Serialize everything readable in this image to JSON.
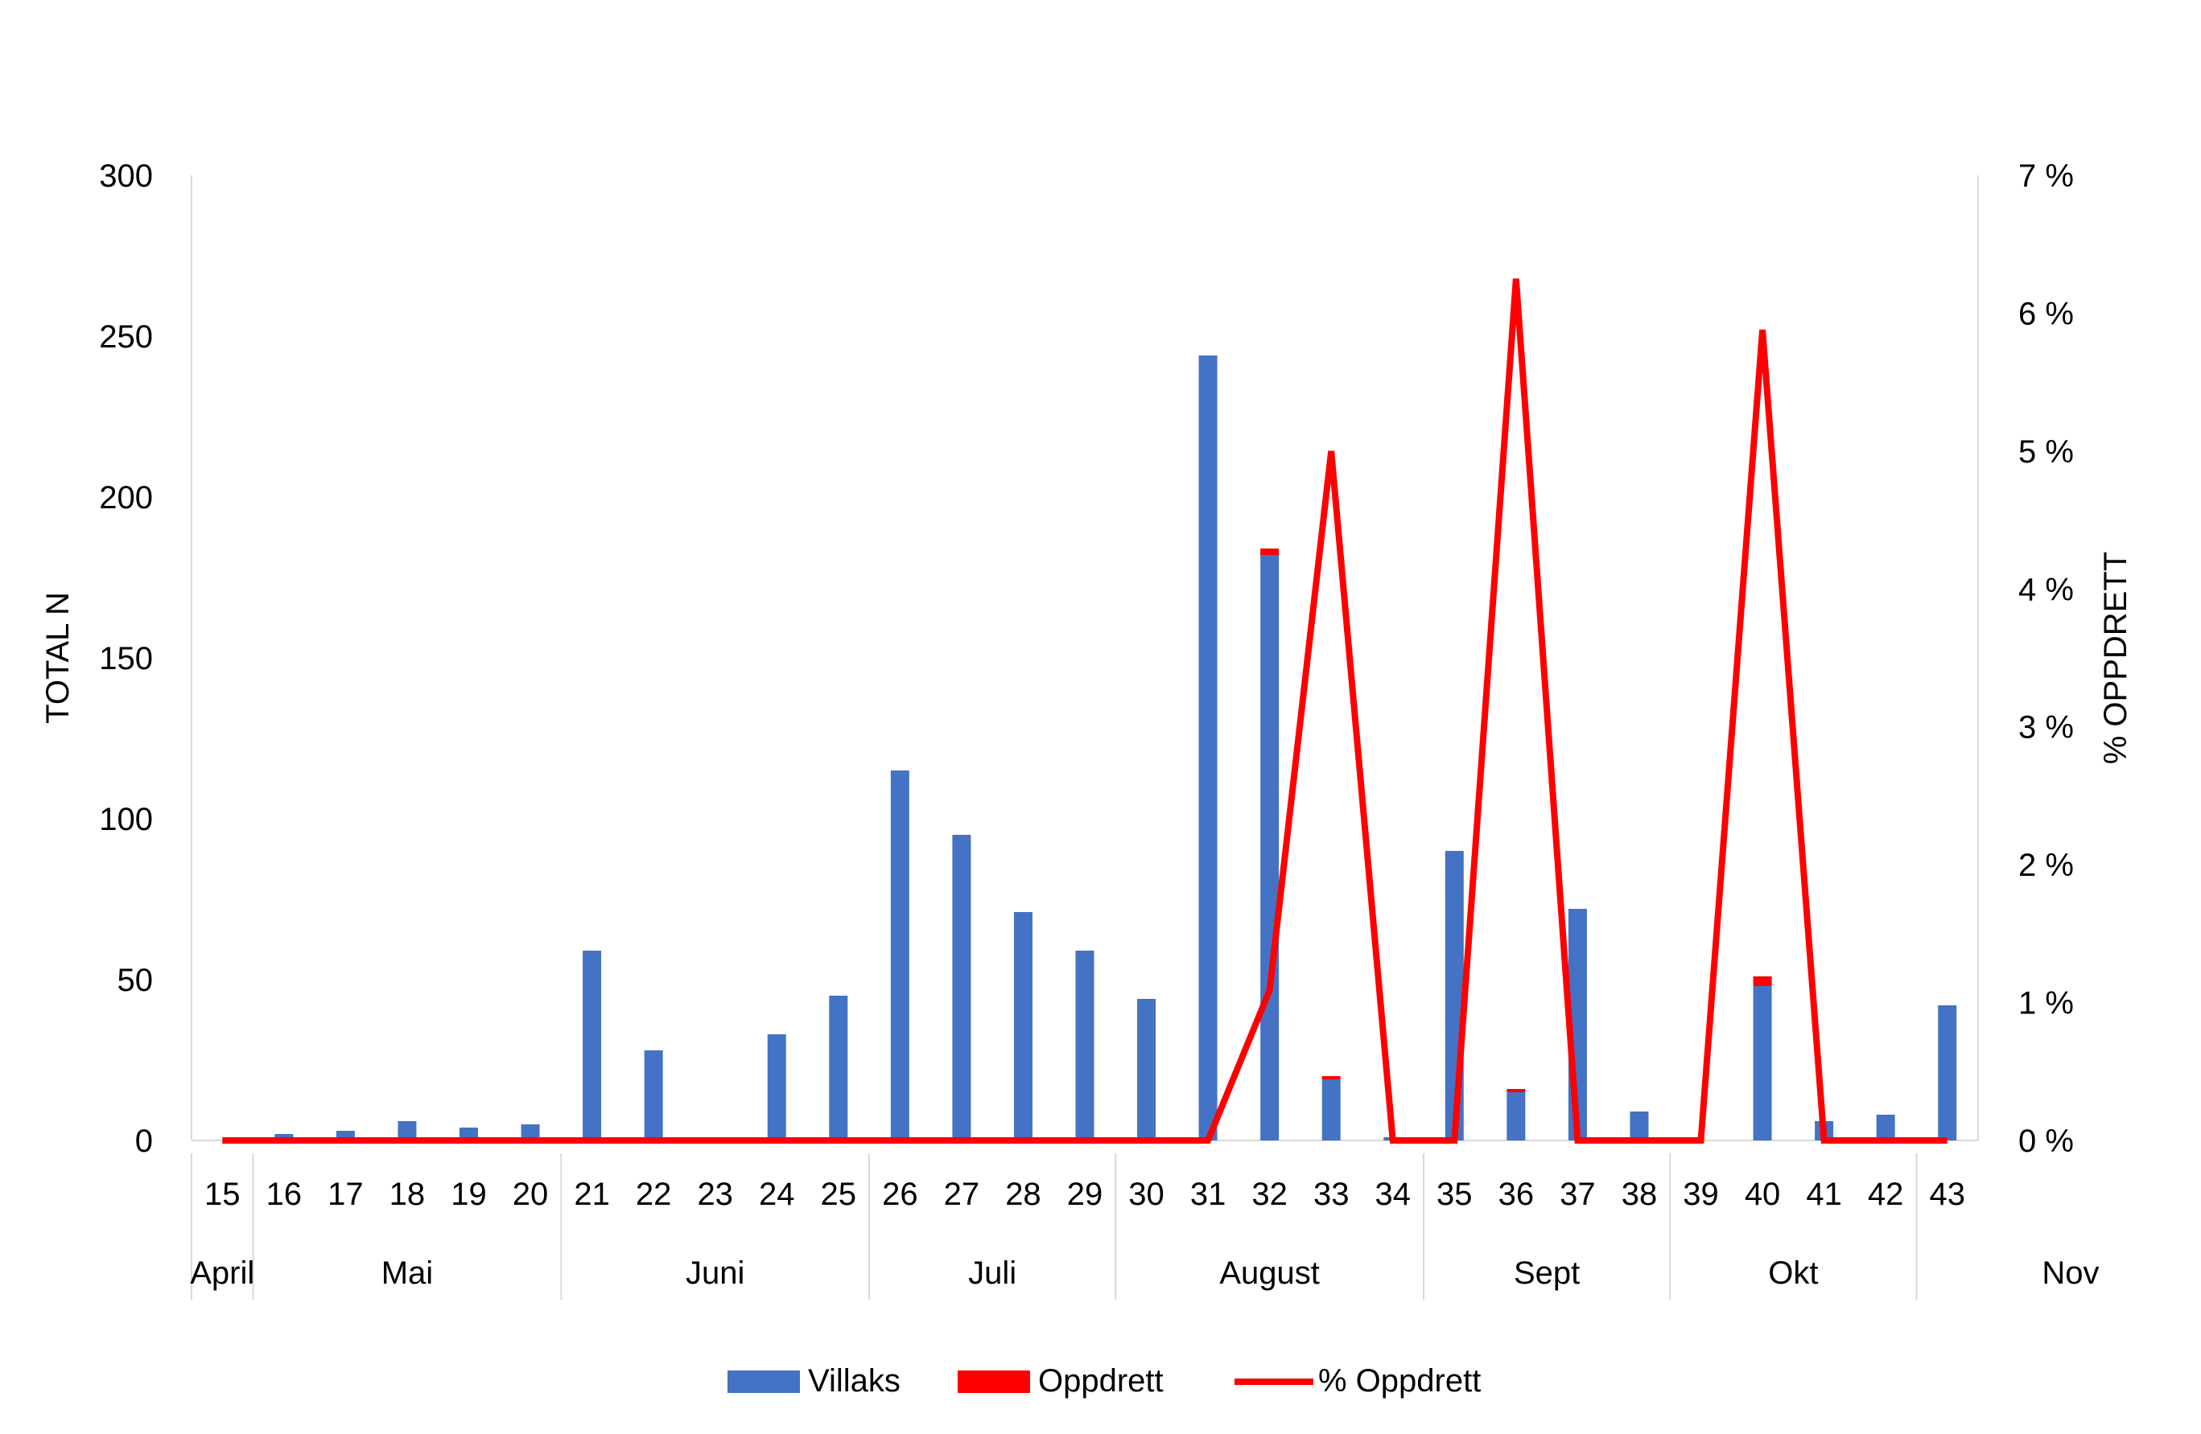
{
  "chart_data": {
    "type": "bar",
    "title": "",
    "ylabel": "TOTAL N",
    "y2label": "% OPPDRETT",
    "ylim": [
      0,
      300
    ],
    "y2lim": [
      0,
      7
    ],
    "yticks": [
      "0",
      "50",
      "100",
      "150",
      "200",
      "250",
      "300"
    ],
    "y2ticks": [
      "0 %",
      "1 %",
      "2 %",
      "3 %",
      "4 %",
      "5 %",
      "6 %",
      "7 %"
    ],
    "categories": [
      "15",
      "16",
      "17",
      "18",
      "19",
      "20",
      "21",
      "22",
      "23",
      "24",
      "25",
      "26",
      "27",
      "28",
      "29",
      "30",
      "31",
      "32",
      "33",
      "34",
      "35",
      "36",
      "37",
      "38",
      "39",
      "40",
      "41",
      "42",
      "43"
    ],
    "months": [
      {
        "label": "April",
        "start": 0,
        "end": 0
      },
      {
        "label": "Mai",
        "start": 1,
        "end": 5
      },
      {
        "label": "Juni",
        "start": 6,
        "end": 10
      },
      {
        "label": "Juli",
        "start": 11,
        "end": 14
      },
      {
        "label": "August",
        "start": 15,
        "end": 19
      },
      {
        "label": "Sept",
        "start": 20,
        "end": 23
      },
      {
        "label": "Okt",
        "start": 24,
        "end": 27
      },
      {
        "label": "Nov",
        "start": 28,
        "end": 28
      }
    ],
    "series": [
      {
        "name": "Villaks",
        "kind": "bar-stack",
        "color": "#4472c4",
        "values": [
          0,
          2,
          3,
          6,
          4,
          5,
          59,
          28,
          0,
          33,
          45,
          115,
          95,
          71,
          59,
          44,
          244,
          182,
          19,
          1,
          90,
          15,
          72,
          9,
          0,
          48,
          6,
          8,
          42
        ]
      },
      {
        "name": "Oppdrett",
        "kind": "bar-stack",
        "color": "#ff0000",
        "values": [
          0,
          0,
          0,
          0,
          0,
          0,
          0,
          0,
          0,
          0,
          0,
          0,
          0,
          0,
          0,
          0,
          0,
          2,
          1,
          0,
          0,
          1,
          0,
          0,
          0,
          3,
          0,
          0,
          0
        ]
      },
      {
        "name": "% Oppdrett",
        "kind": "line",
        "axis": "right",
        "color": "#ff0000",
        "values": [
          0,
          0,
          0,
          0,
          0,
          0,
          0,
          0,
          0,
          0,
          0,
          0,
          0,
          0,
          0,
          0,
          0,
          1.09,
          5.0,
          0,
          0,
          6.25,
          0,
          0,
          0,
          5.88,
          0,
          0,
          0
        ]
      }
    ],
    "legend": [
      "Villaks",
      "Oppdrett",
      "% Oppdrett"
    ],
    "legend_position": "bottom"
  }
}
